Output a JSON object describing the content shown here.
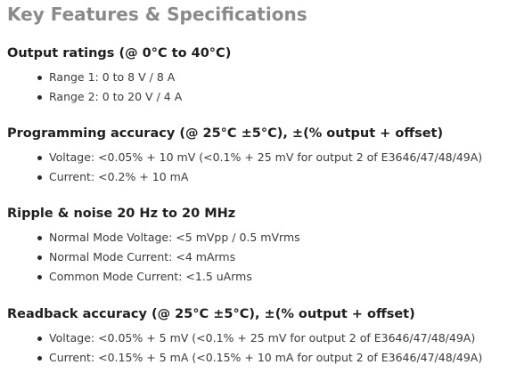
{
  "main_title": "Key Features & Specifications",
  "sections": [
    {
      "title": "Output ratings (@ 0°C to 40°C)",
      "items": [
        "Range 1: 0 to 8 V / 8 A",
        "Range 2: 0 to 20 V / 4 A"
      ]
    },
    {
      "title": "Programming accuracy (@ 25°C ±5°C), ±(% output + offset)",
      "items": [
        "Voltage: <0.05% + 10 mV (<0.1% + 25 mV for output 2 of E3646/47/48/49A)",
        "Current: <0.2% + 10 mA"
      ]
    },
    {
      "title": "Ripple & noise 20 Hz to 20 MHz",
      "items": [
        "Normal Mode Voltage: <5 mVpp / 0.5 mVrms",
        "Normal Mode Current: <4 mArms",
        "Common Mode Current: <1.5 uArms"
      ]
    },
    {
      "title": "Readback accuracy (@ 25°C ±5°C), ±(% output + offset)",
      "items": [
        "Voltage: <0.05% + 5 mV (<0.1% + 25 mV for output 2 of E3646/47/48/49A)",
        "Current: <0.15% + 5 mA (<0.15% + 10 mA for output 2 of E3646/47/48/49A)"
      ]
    }
  ]
}
